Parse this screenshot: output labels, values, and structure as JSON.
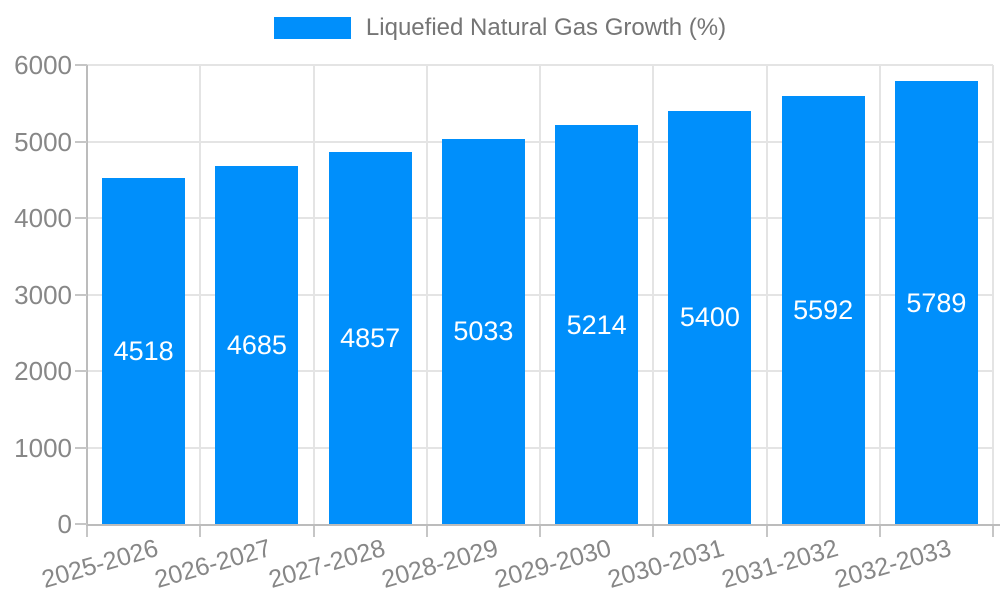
{
  "legend": {
    "label": "Liquefied Natural Gas Growth (%)",
    "swatch_color": "#008FFB",
    "position": "top-center"
  },
  "chart_data": {
    "type": "bar",
    "title": "",
    "xlabel": "",
    "ylabel": "",
    "categories": [
      "2025-2026",
      "2026-2027",
      "2027-2028",
      "2028-2029",
      "2029-2030",
      "2030-2031",
      "2031-2032",
      "2032-2033"
    ],
    "series": [
      {
        "name": "Liquefied Natural Gas Growth (%)",
        "values": [
          4518,
          4685,
          4857,
          5033,
          5214,
          5400,
          5592,
          5789
        ]
      }
    ],
    "data_labels": [
      "4518",
      "4685",
      "4857",
      "5033",
      "5214",
      "5400",
      "5592",
      "5789"
    ],
    "ylim": [
      0,
      6000
    ],
    "yticks": [
      0,
      1000,
      2000,
      3000,
      4000,
      5000,
      6000
    ],
    "ytick_labels": [
      "0",
      "1000",
      "2000",
      "3000",
      "4000",
      "5000",
      "6000"
    ],
    "grid": true,
    "legend_position": "top",
    "bar_color": "#008FFB",
    "grid_color": "#E4E4E4",
    "axis_color": "#BCBCBC",
    "tick_label_color": "#878787",
    "data_label_color": "#ffffff",
    "x_label_rotation_deg": -16
  }
}
